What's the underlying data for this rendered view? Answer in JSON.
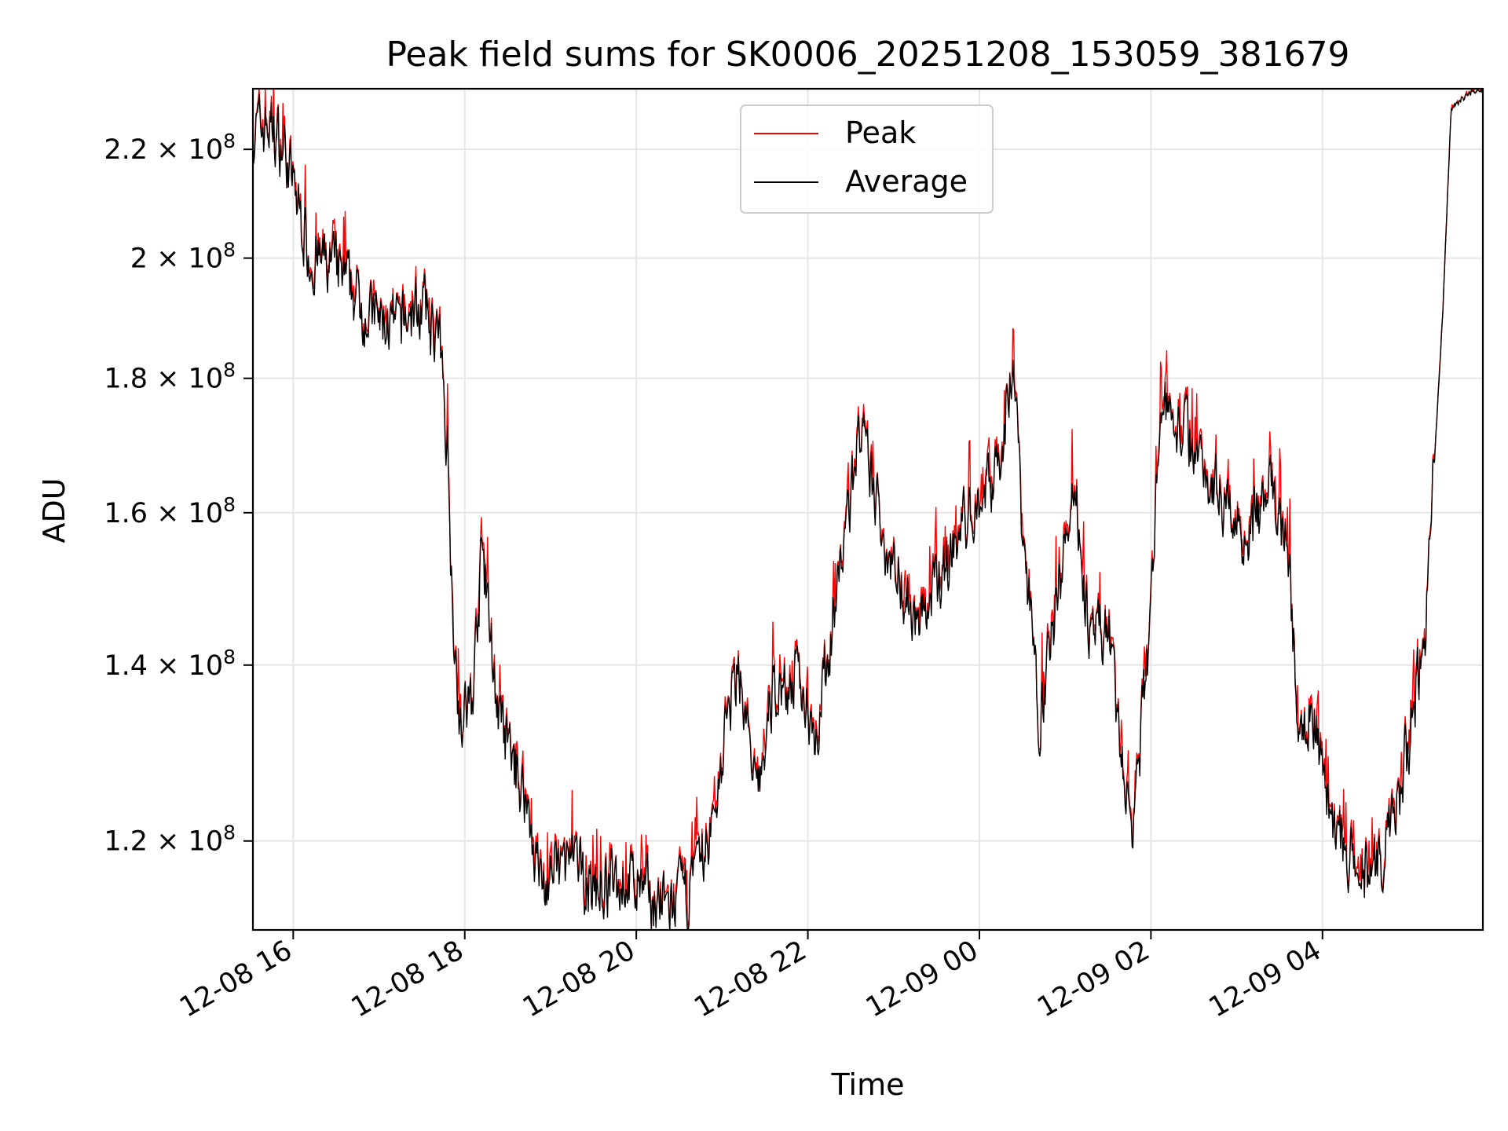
{
  "chart_data": {
    "type": "line",
    "title": "Peak field sums for SK0006_20251208_153059_381679",
    "xlabel": "Time",
    "ylabel": "ADU",
    "yscale": "log",
    "ylim": [
      111000000.0,
      232000000.0
    ],
    "xlim_hours": [
      15.53,
      5.87
    ],
    "grid": true,
    "legend_location": "upper center",
    "x_ticks": [
      {
        "hour": 16,
        "label": "12-08 16"
      },
      {
        "hour": 18,
        "label": "12-08 18"
      },
      {
        "hour": 20,
        "label": "12-08 20"
      },
      {
        "hour": 22,
        "label": "12-08 22"
      },
      {
        "hour": 24,
        "label": "12-09 00"
      },
      {
        "hour": 26,
        "label": "12-09 02"
      },
      {
        "hour": 28,
        "label": "12-09 04"
      }
    ],
    "y_ticks": [
      {
        "value": 120000000.0,
        "mantissa": "1.2",
        "exponent": "8"
      },
      {
        "value": 140000000.0,
        "mantissa": "1.4",
        "exponent": "8"
      },
      {
        "value": 160000000.0,
        "mantissa": "1.6",
        "exponent": "8"
      },
      {
        "value": 180000000.0,
        "mantissa": "1.8",
        "exponent": "8"
      },
      {
        "value": 200000000.0,
        "mantissa": "2",
        "exponent": "8"
      },
      {
        "value": 220000000.0,
        "mantissa": "2.2",
        "exponent": "8"
      }
    ],
    "tick_format": "× 10",
    "series": [
      {
        "name": "Peak",
        "color": "#ff0000",
        "offset_max": 0.05
      },
      {
        "name": "Average",
        "color": "#000000",
        "offset_max": 0.0
      }
    ],
    "trend_hours": [
      15.53,
      15.7,
      15.9,
      16.2,
      16.5,
      16.9,
      17.2,
      17.5,
      17.7,
      17.8,
      17.85,
      17.95,
      18.1,
      18.2,
      18.4,
      18.7,
      18.9,
      19.2,
      19.5,
      19.9,
      20.2,
      20.4,
      20.7,
      20.9,
      21.05,
      21.2,
      21.4,
      21.6,
      21.9,
      22.1,
      22.35,
      22.6,
      22.9,
      23.3,
      23.8,
      24.2,
      24.4,
      24.5,
      24.7,
      24.9,
      25.1,
      25.3,
      25.5,
      25.7,
      25.8,
      26.0,
      26.1,
      26.4,
      26.7,
      27.1,
      27.4,
      27.6,
      27.7,
      27.9,
      28.1,
      28.4,
      28.7,
      28.9,
      29.2,
      29.4,
      29.5,
      29.7,
      29.87
    ],
    "trend_values": [
      223000000.0,
      225000000.0,
      220000000.0,
      200000000.0,
      198000000.0,
      190000000.0,
      188000000.0,
      192000000.0,
      186000000.0,
      170000000.0,
      150000000.0,
      132000000.0,
      137000000.0,
      155000000.0,
      133000000.0,
      125000000.0,
      115000000.0,
      118000000.0,
      115000000.0,
      116000000.0,
      114000000.0,
      113000000.0,
      116000000.0,
      122000000.0,
      133000000.0,
      140000000.0,
      124000000.0,
      137000000.0,
      138000000.0,
      132000000.0,
      150000000.0,
      172000000.0,
      156000000.0,
      145000000.0,
      158000000.0,
      166000000.0,
      183000000.0,
      158000000.0,
      134000000.0,
      147000000.0,
      165000000.0,
      142000000.0,
      145000000.0,
      125000000.0,
      122000000.0,
      146000000.0,
      176000000.0,
      172000000.0,
      165000000.0,
      157000000.0,
      163000000.0,
      155000000.0,
      135000000.0,
      134000000.0,
      123000000.0,
      116000000.0,
      118000000.0,
      124000000.0,
      145000000.0,
      190000000.0,
      228000000.0,
      231000000.0,
      232000000.0
    ]
  }
}
